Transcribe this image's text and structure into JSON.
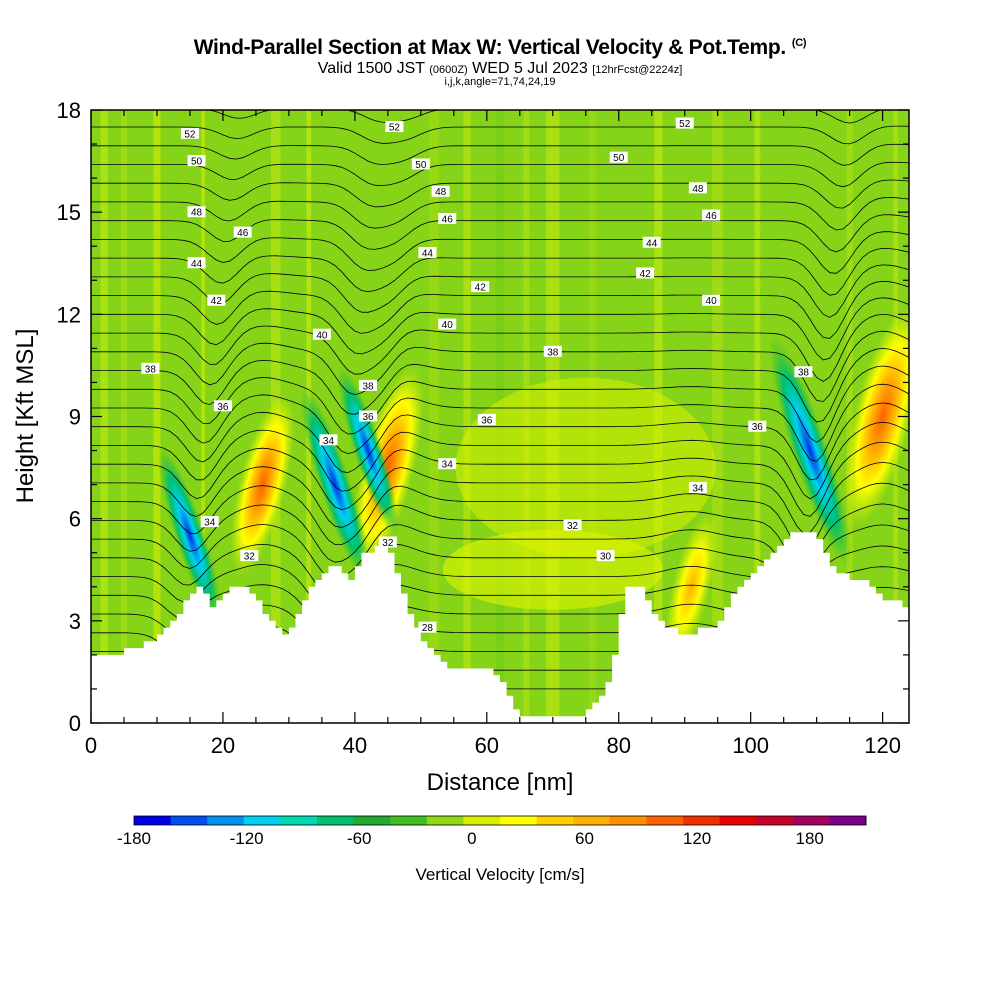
{
  "title": "Wind-Parallel Section at Max W: Vertical Velocity & Pot.Temp.",
  "copyright": "(C)",
  "subtitle_pre": "Valid 1500 JST",
  "subtitle_small": "(0600Z)",
  "subtitle_mid": "WED 5 Jul 2023",
  "subtitle_fcst": "[12hrFcst@2224z]",
  "params": "i,j,k,angle=71,74,24,19",
  "chart_data": {
    "type": "heatmap",
    "title": "Wind-Parallel Section at Max W: Vertical Velocity & Pot.Temp.",
    "xlabel": "Distance [nm]",
    "ylabel": "Height [Kft MSL]",
    "xlim": [
      0,
      124
    ],
    "ylim": [
      0,
      18
    ],
    "xticks": [
      0,
      20,
      40,
      60,
      80,
      100,
      120
    ],
    "yticks": [
      0,
      3,
      6,
      9,
      12,
      15,
      18
    ],
    "colorbar": {
      "label": "Vertical Velocity [cm/s]",
      "range": [
        -180,
        210
      ],
      "ticks": [
        -180,
        -120,
        -60,
        0,
        60,
        120,
        180
      ],
      "colors": [
        "#0000e8",
        "#0050f0",
        "#0090f0",
        "#00d0f0",
        "#00d8b0",
        "#00c070",
        "#22aa33",
        "#40c020",
        "#90d818",
        "#d8f000",
        "#ffff00",
        "#ffd000",
        "#ffb000",
        "#ff9000",
        "#ff6000",
        "#f03000",
        "#e80000",
        "#c8002c",
        "#a00060",
        "#7a008c"
      ]
    },
    "terrain": [
      [
        0,
        2.0
      ],
      [
        1,
        2.0
      ],
      [
        2,
        2.0
      ],
      [
        3,
        2.0
      ],
      [
        4,
        2.0
      ],
      [
        5,
        2.2
      ],
      [
        6,
        2.2
      ],
      [
        7,
        2.2
      ],
      [
        8,
        2.4
      ],
      [
        9,
        2.4
      ],
      [
        10,
        2.6
      ],
      [
        11,
        2.8
      ],
      [
        12,
        3.0
      ],
      [
        13,
        3.2
      ],
      [
        14,
        3.6
      ],
      [
        15,
        3.8
      ],
      [
        16,
        4.0
      ],
      [
        17,
        3.8
      ],
      [
        18,
        3.4
      ],
      [
        19,
        3.6
      ],
      [
        20,
        3.8
      ],
      [
        21,
        4.0
      ],
      [
        22,
        4.0
      ],
      [
        23,
        4.0
      ],
      [
        24,
        3.8
      ],
      [
        25,
        3.6
      ],
      [
        26,
        3.2
      ],
      [
        27,
        3.0
      ],
      [
        28,
        2.8
      ],
      [
        29,
        2.6
      ],
      [
        30,
        2.8
      ],
      [
        31,
        3.2
      ],
      [
        32,
        3.6
      ],
      [
        33,
        4.0
      ],
      [
        34,
        4.2
      ],
      [
        35,
        4.4
      ],
      [
        36,
        4.6
      ],
      [
        37,
        4.6
      ],
      [
        38,
        4.4
      ],
      [
        39,
        4.2
      ],
      [
        40,
        4.6
      ],
      [
        41,
        5.0
      ],
      [
        42,
        5.0
      ],
      [
        43,
        5.2
      ],
      [
        44,
        5.2
      ],
      [
        45,
        5.0
      ],
      [
        46,
        4.4
      ],
      [
        47,
        3.8
      ],
      [
        48,
        3.2
      ],
      [
        49,
        2.8
      ],
      [
        50,
        2.4
      ],
      [
        51,
        2.2
      ],
      [
        52,
        2.0
      ],
      [
        53,
        1.8
      ],
      [
        54,
        1.6
      ],
      [
        55,
        1.6
      ],
      [
        56,
        1.6
      ],
      [
        57,
        1.6
      ],
      [
        58,
        1.6
      ],
      [
        59,
        1.6
      ],
      [
        60,
        1.6
      ],
      [
        61,
        1.4
      ],
      [
        62,
        1.2
      ],
      [
        63,
        0.8
      ],
      [
        64,
        0.4
      ],
      [
        65,
        0.2
      ],
      [
        66,
        0.2
      ],
      [
        67,
        0.2
      ],
      [
        68,
        0.2
      ],
      [
        69,
        0.2
      ],
      [
        70,
        0.2
      ],
      [
        71,
        0.2
      ],
      [
        72,
        0.2
      ],
      [
        73,
        0.2
      ],
      [
        74,
        0.2
      ],
      [
        75,
        0.4
      ],
      [
        76,
        0.6
      ],
      [
        77,
        0.8
      ],
      [
        78,
        1.2
      ],
      [
        79,
        2.0
      ],
      [
        80,
        3.2
      ],
      [
        81,
        4.0
      ],
      [
        82,
        4.0
      ],
      [
        83,
        4.0
      ],
      [
        84,
        3.6
      ],
      [
        85,
        3.2
      ],
      [
        86,
        3.0
      ],
      [
        87,
        2.8
      ],
      [
        88,
        2.8
      ],
      [
        89,
        2.6
      ],
      [
        90,
        2.6
      ],
      [
        91,
        2.6
      ],
      [
        92,
        2.8
      ],
      [
        93,
        2.8
      ],
      [
        94,
        2.8
      ],
      [
        95,
        3.0
      ],
      [
        96,
        3.4
      ],
      [
        97,
        3.8
      ],
      [
        98,
        4.0
      ],
      [
        99,
        4.2
      ],
      [
        100,
        4.4
      ],
      [
        101,
        4.6
      ],
      [
        102,
        4.8
      ],
      [
        103,
        5.0
      ],
      [
        104,
        5.2
      ],
      [
        105,
        5.4
      ],
      [
        106,
        5.6
      ],
      [
        107,
        5.6
      ],
      [
        108,
        5.6
      ],
      [
        109,
        5.6
      ],
      [
        110,
        5.4
      ],
      [
        111,
        5.0
      ],
      [
        112,
        4.6
      ],
      [
        113,
        4.4
      ],
      [
        114,
        4.4
      ],
      [
        115,
        4.2
      ],
      [
        116,
        4.2
      ],
      [
        117,
        4.2
      ],
      [
        118,
        4.0
      ],
      [
        119,
        3.8
      ],
      [
        120,
        3.6
      ],
      [
        121,
        3.6
      ],
      [
        122,
        3.6
      ],
      [
        123,
        3.4
      ],
      [
        124,
        3.4
      ]
    ],
    "updrafts": [
      {
        "x": 26,
        "y": 7.0,
        "w_max": 95
      },
      {
        "x": 45,
        "y": 7.5,
        "w_max": 120
      },
      {
        "x": 120,
        "y": 9.0,
        "w_max": 140
      },
      {
        "x": 91,
        "y": 4.0,
        "w_max": 60
      }
    ],
    "downdrafts": [
      {
        "x": 15,
        "y": 5.5,
        "w_min": -120
      },
      {
        "x": 37,
        "y": 7.0,
        "w_min": -140
      },
      {
        "x": 42,
        "y": 8.0,
        "w_min": -110
      },
      {
        "x": 109,
        "y": 8.0,
        "w_min": -180
      }
    ],
    "theta_contour_labels": [
      {
        "text": "52",
        "x": 15,
        "y": 17.3
      },
      {
        "text": "50",
        "x": 16,
        "y": 16.5
      },
      {
        "text": "48",
        "x": 16,
        "y": 15.0
      },
      {
        "text": "46",
        "x": 23,
        "y": 14.4
      },
      {
        "text": "44",
        "x": 16,
        "y": 13.5
      },
      {
        "text": "42",
        "x": 19,
        "y": 12.4
      },
      {
        "text": "38",
        "x": 9,
        "y": 10.4
      },
      {
        "text": "36",
        "x": 20,
        "y": 9.3
      },
      {
        "text": "34",
        "x": 18,
        "y": 5.9
      },
      {
        "text": "32",
        "x": 24,
        "y": 4.9
      },
      {
        "text": "52",
        "x": 46,
        "y": 17.5
      },
      {
        "text": "50",
        "x": 50,
        "y": 16.4
      },
      {
        "text": "48",
        "x": 53,
        "y": 15.6
      },
      {
        "text": "46",
        "x": 54,
        "y": 14.8
      },
      {
        "text": "44",
        "x": 51,
        "y": 13.8
      },
      {
        "text": "42",
        "x": 59,
        "y": 12.8
      },
      {
        "text": "40",
        "x": 54,
        "y": 11.7
      },
      {
        "text": "40",
        "x": 35,
        "y": 11.4
      },
      {
        "text": "38",
        "x": 42,
        "y": 9.9
      },
      {
        "text": "36",
        "x": 42,
        "y": 9.0
      },
      {
        "text": "34",
        "x": 36,
        "y": 8.3
      },
      {
        "text": "32",
        "x": 45,
        "y": 5.3
      },
      {
        "text": "28",
        "x": 51,
        "y": 2.8
      },
      {
        "text": "36",
        "x": 60,
        "y": 8.9
      },
      {
        "text": "34",
        "x": 54,
        "y": 7.6
      },
      {
        "text": "38",
        "x": 70,
        "y": 10.9
      },
      {
        "text": "32",
        "x": 73,
        "y": 5.8
      },
      {
        "text": "30",
        "x": 78,
        "y": 4.9
      },
      {
        "text": "52",
        "x": 90,
        "y": 17.6
      },
      {
        "text": "50",
        "x": 80,
        "y": 16.6
      },
      {
        "text": "48",
        "x": 92,
        "y": 15.7
      },
      {
        "text": "46",
        "x": 94,
        "y": 14.9
      },
      {
        "text": "44",
        "x": 85,
        "y": 14.1
      },
      {
        "text": "42",
        "x": 84,
        "y": 13.2
      },
      {
        "text": "40",
        "x": 94,
        "y": 12.4
      },
      {
        "text": "38",
        "x": 108,
        "y": 10.3
      },
      {
        "text": "36",
        "x": 101,
        "y": 8.7
      },
      {
        "text": "34",
        "x": 92,
        "y": 6.9
      }
    ]
  }
}
